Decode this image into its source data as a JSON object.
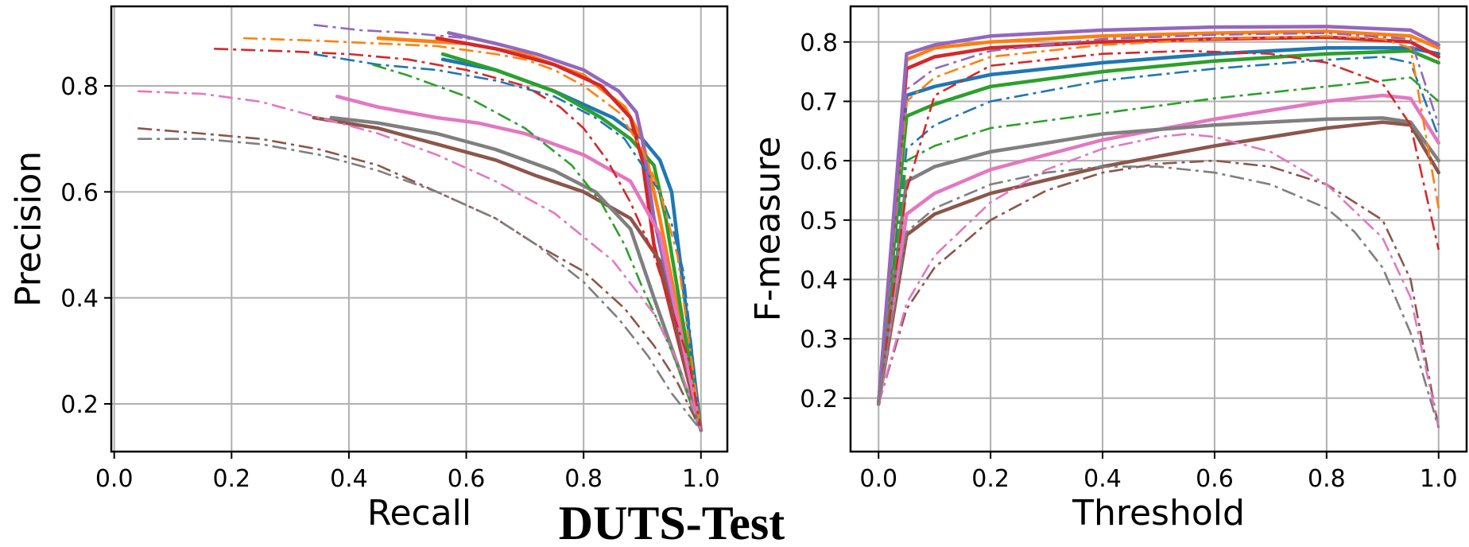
{
  "figure_title": "DUTS-Test",
  "chart_data": [
    {
      "type": "line",
      "title": "",
      "xlabel": "Recall",
      "ylabel": "Precision",
      "xlim": [
        -0.005,
        1.045
      ],
      "ylim": [
        0.11,
        0.95
      ],
      "xticks": [
        0.0,
        0.2,
        0.4,
        0.6,
        0.8,
        1.0
      ],
      "xtick_labels": [
        "0.0",
        "0.2",
        "0.4",
        "0.6",
        "0.8",
        "1.0"
      ],
      "yticks": [
        0.2,
        0.4,
        0.6,
        0.8
      ],
      "ytick_labels": [
        "0.2",
        "0.4",
        "0.6",
        "0.8"
      ],
      "grid": true,
      "series": [
        {
          "color": "#1f77b4",
          "style": "solid",
          "x": [
            0.56,
            0.65,
            0.75,
            0.85,
            0.9,
            0.93,
            0.95,
            1.0
          ],
          "y": [
            0.85,
            0.83,
            0.79,
            0.74,
            0.7,
            0.66,
            0.6,
            0.15
          ]
        },
        {
          "color": "#ff7f0e",
          "style": "solid",
          "x": [
            0.45,
            0.6,
            0.7,
            0.8,
            0.87,
            0.9,
            0.93,
            1.0
          ],
          "y": [
            0.89,
            0.88,
            0.86,
            0.82,
            0.76,
            0.7,
            0.55,
            0.15
          ]
        },
        {
          "color": "#2ca02c",
          "style": "solid",
          "x": [
            0.56,
            0.65,
            0.75,
            0.83,
            0.88,
            0.92,
            0.94,
            1.0
          ],
          "y": [
            0.86,
            0.83,
            0.79,
            0.74,
            0.7,
            0.65,
            0.55,
            0.15
          ]
        },
        {
          "color": "#d62728",
          "style": "solid",
          "x": [
            0.55,
            0.65,
            0.75,
            0.83,
            0.88,
            0.9,
            0.92,
            1.0
          ],
          "y": [
            0.89,
            0.87,
            0.84,
            0.8,
            0.74,
            0.66,
            0.5,
            0.15
          ]
        },
        {
          "color": "#9467bd",
          "style": "solid",
          "x": [
            0.57,
            0.65,
            0.72,
            0.8,
            0.86,
            0.89,
            0.9,
            0.92,
            1.0
          ],
          "y": [
            0.9,
            0.88,
            0.86,
            0.83,
            0.79,
            0.75,
            0.7,
            0.55,
            0.15
          ]
        },
        {
          "color": "#8c564b",
          "style": "solid",
          "x": [
            0.34,
            0.45,
            0.55,
            0.65,
            0.72,
            0.8,
            0.88,
            0.93,
            1.0
          ],
          "y": [
            0.74,
            0.72,
            0.69,
            0.66,
            0.63,
            0.6,
            0.55,
            0.47,
            0.15
          ]
        },
        {
          "color": "#e377c2",
          "style": "solid",
          "x": [
            0.38,
            0.45,
            0.55,
            0.62,
            0.7,
            0.8,
            0.88,
            0.93,
            1.0
          ],
          "y": [
            0.78,
            0.76,
            0.74,
            0.73,
            0.71,
            0.67,
            0.62,
            0.52,
            0.15
          ]
        },
        {
          "color": "#7f7f7f",
          "style": "solid",
          "x": [
            0.37,
            0.45,
            0.55,
            0.65,
            0.75,
            0.82,
            0.88,
            0.92,
            1.0
          ],
          "y": [
            0.74,
            0.73,
            0.71,
            0.68,
            0.64,
            0.6,
            0.53,
            0.4,
            0.15
          ]
        },
        {
          "color": "#1f77b4",
          "style": "dashdot",
          "x": [
            0.34,
            0.45,
            0.55,
            0.65,
            0.75,
            0.82,
            0.87,
            0.9,
            0.93,
            0.95,
            0.97,
            1.0
          ],
          "y": [
            0.86,
            0.84,
            0.83,
            0.81,
            0.78,
            0.74,
            0.7,
            0.65,
            0.6,
            0.54,
            0.45,
            0.15
          ]
        },
        {
          "color": "#ff7f0e",
          "style": "dashdot",
          "x": [
            0.22,
            0.35,
            0.45,
            0.55,
            0.65,
            0.7,
            0.75,
            0.8,
            0.86,
            0.9,
            0.93,
            0.96,
            1.0
          ],
          "y": [
            0.89,
            0.885,
            0.88,
            0.875,
            0.86,
            0.85,
            0.83,
            0.8,
            0.75,
            0.68,
            0.6,
            0.48,
            0.15
          ]
        },
        {
          "color": "#2ca02c",
          "style": "dashdot",
          "x": [
            0.44,
            0.5,
            0.6,
            0.7,
            0.78,
            0.83,
            0.87,
            0.9,
            0.95,
            1.0
          ],
          "y": [
            0.84,
            0.82,
            0.78,
            0.72,
            0.65,
            0.58,
            0.5,
            0.42,
            0.3,
            0.15
          ]
        },
        {
          "color": "#d62728",
          "style": "dashdot",
          "x": [
            0.17,
            0.3,
            0.4,
            0.5,
            0.6,
            0.7,
            0.76,
            0.8,
            0.84,
            0.88,
            0.92,
            0.95,
            0.98,
            1.0
          ],
          "y": [
            0.87,
            0.865,
            0.86,
            0.85,
            0.83,
            0.8,
            0.76,
            0.72,
            0.66,
            0.58,
            0.48,
            0.38,
            0.28,
            0.15
          ]
        },
        {
          "color": "#9467bd",
          "style": "dashdot",
          "x": [
            0.34,
            0.42,
            0.5,
            0.6,
            0.65
          ],
          "y": [
            0.915,
            0.905,
            0.9,
            0.89,
            0.88
          ]
        },
        {
          "color": "#8c564b",
          "style": "dashdot",
          "x": [
            0.04,
            0.15,
            0.25,
            0.35,
            0.45,
            0.55,
            0.65,
            0.72,
            0.8,
            0.87,
            0.92,
            0.96,
            1.0
          ],
          "y": [
            0.72,
            0.71,
            0.7,
            0.68,
            0.65,
            0.6,
            0.55,
            0.5,
            0.45,
            0.38,
            0.31,
            0.24,
            0.15
          ]
        },
        {
          "color": "#e377c2",
          "style": "dashdot",
          "x": [
            0.04,
            0.15,
            0.25,
            0.35,
            0.45,
            0.55,
            0.65,
            0.75,
            0.85,
            0.92,
            0.96,
            1.0
          ],
          "y": [
            0.79,
            0.785,
            0.77,
            0.74,
            0.71,
            0.67,
            0.62,
            0.56,
            0.47,
            0.37,
            0.28,
            0.15
          ]
        },
        {
          "color": "#7f7f7f",
          "style": "dashdot",
          "x": [
            0.04,
            0.15,
            0.25,
            0.35,
            0.45,
            0.55,
            0.65,
            0.72,
            0.8,
            0.86,
            0.91,
            0.95,
            1.0
          ],
          "y": [
            0.7,
            0.7,
            0.69,
            0.67,
            0.64,
            0.6,
            0.55,
            0.5,
            0.43,
            0.36,
            0.29,
            0.22,
            0.15
          ]
        }
      ]
    },
    {
      "type": "line",
      "title": "",
      "xlabel": "Threshold",
      "ylabel": "F-measure",
      "xlim": [
        -0.05,
        1.05
      ],
      "ylim": [
        0.11,
        0.86
      ],
      "xticks": [
        0.0,
        0.2,
        0.4,
        0.6,
        0.8,
        1.0
      ],
      "xtick_labels": [
        "0.0",
        "0.2",
        "0.4",
        "0.6",
        "0.8",
        "1.0"
      ],
      "yticks": [
        0.2,
        0.3,
        0.4,
        0.5,
        0.6,
        0.7,
        0.8
      ],
      "ytick_labels": [
        "0.2",
        "0.3",
        "0.4",
        "0.5",
        "0.6",
        "0.7",
        "0.8"
      ],
      "grid": true,
      "series": [
        {
          "color": "#1f77b4",
          "style": "solid",
          "x": [
            0.0,
            0.05,
            0.1,
            0.2,
            0.4,
            0.6,
            0.8,
            0.95,
            1.0
          ],
          "y": [
            0.19,
            0.71,
            0.725,
            0.745,
            0.765,
            0.78,
            0.79,
            0.79,
            0.78
          ]
        },
        {
          "color": "#ff7f0e",
          "style": "solid",
          "x": [
            0.0,
            0.05,
            0.1,
            0.2,
            0.4,
            0.6,
            0.8,
            0.95,
            1.0
          ],
          "y": [
            0.19,
            0.77,
            0.79,
            0.8,
            0.81,
            0.815,
            0.818,
            0.81,
            0.79
          ]
        },
        {
          "color": "#2ca02c",
          "style": "solid",
          "x": [
            0.0,
            0.05,
            0.1,
            0.2,
            0.4,
            0.6,
            0.8,
            0.95,
            1.0
          ],
          "y": [
            0.19,
            0.675,
            0.695,
            0.725,
            0.75,
            0.768,
            0.78,
            0.785,
            0.765
          ]
        },
        {
          "color": "#d62728",
          "style": "solid",
          "x": [
            0.0,
            0.05,
            0.1,
            0.2,
            0.4,
            0.6,
            0.8,
            0.95,
            1.0
          ],
          "y": [
            0.19,
            0.755,
            0.775,
            0.79,
            0.8,
            0.805,
            0.808,
            0.8,
            0.775
          ]
        },
        {
          "color": "#9467bd",
          "style": "solid",
          "x": [
            0.0,
            0.05,
            0.1,
            0.2,
            0.4,
            0.6,
            0.8,
            0.95,
            1.0
          ],
          "y": [
            0.19,
            0.78,
            0.795,
            0.81,
            0.82,
            0.825,
            0.826,
            0.82,
            0.795
          ]
        },
        {
          "color": "#8c564b",
          "style": "solid",
          "x": [
            0.0,
            0.05,
            0.1,
            0.2,
            0.4,
            0.6,
            0.8,
            0.9,
            0.95,
            1.0
          ],
          "y": [
            0.19,
            0.475,
            0.51,
            0.545,
            0.59,
            0.625,
            0.655,
            0.665,
            0.66,
            0.58
          ]
        },
        {
          "color": "#e377c2",
          "style": "solid",
          "x": [
            0.0,
            0.05,
            0.1,
            0.2,
            0.4,
            0.6,
            0.8,
            0.9,
            0.95,
            1.0
          ],
          "y": [
            0.19,
            0.51,
            0.545,
            0.585,
            0.635,
            0.67,
            0.7,
            0.71,
            0.705,
            0.63
          ]
        },
        {
          "color": "#7f7f7f",
          "style": "solid",
          "x": [
            0.0,
            0.05,
            0.1,
            0.2,
            0.4,
            0.6,
            0.8,
            0.9,
            0.95,
            1.0
          ],
          "y": [
            0.19,
            0.565,
            0.59,
            0.615,
            0.645,
            0.66,
            0.67,
            0.672,
            0.665,
            0.6
          ]
        },
        {
          "color": "#1f77b4",
          "style": "dashdot",
          "x": [
            0.0,
            0.05,
            0.1,
            0.2,
            0.4,
            0.6,
            0.8,
            0.9,
            0.95,
            1.0
          ],
          "y": [
            0.19,
            0.62,
            0.66,
            0.7,
            0.735,
            0.755,
            0.77,
            0.775,
            0.765,
            0.64
          ]
        },
        {
          "color": "#ff7f0e",
          "style": "dashdot",
          "x": [
            0.0,
            0.05,
            0.1,
            0.2,
            0.4,
            0.6,
            0.8,
            0.9,
            0.95,
            1.0
          ],
          "y": [
            0.19,
            0.7,
            0.74,
            0.775,
            0.795,
            0.805,
            0.81,
            0.805,
            0.79,
            0.52
          ]
        },
        {
          "color": "#2ca02c",
          "style": "dashdot",
          "x": [
            0.0,
            0.05,
            0.1,
            0.2,
            0.4,
            0.6,
            0.8,
            0.95,
            1.0
          ],
          "y": [
            0.19,
            0.6,
            0.625,
            0.655,
            0.68,
            0.705,
            0.725,
            0.74,
            0.7
          ]
        },
        {
          "color": "#d62728",
          "style": "dashdot",
          "x": [
            0.0,
            0.05,
            0.1,
            0.2,
            0.4,
            0.55,
            0.7,
            0.8,
            0.9,
            0.95,
            1.0
          ],
          "y": [
            0.19,
            0.55,
            0.71,
            0.76,
            0.78,
            0.785,
            0.78,
            0.765,
            0.73,
            0.66,
            0.45
          ]
        },
        {
          "color": "#9467bd",
          "style": "dashdot",
          "x": [
            0.0,
            0.05,
            0.1,
            0.2,
            0.4,
            0.6,
            0.8,
            0.95,
            1.0
          ],
          "y": [
            0.19,
            0.72,
            0.755,
            0.785,
            0.805,
            0.812,
            0.815,
            0.805,
            0.66
          ]
        },
        {
          "color": "#8c564b",
          "style": "dashdot",
          "x": [
            0.0,
            0.05,
            0.1,
            0.2,
            0.3,
            0.4,
            0.5,
            0.6,
            0.7,
            0.8,
            0.9,
            0.95,
            1.0
          ],
          "y": [
            0.19,
            0.35,
            0.42,
            0.5,
            0.55,
            0.58,
            0.595,
            0.6,
            0.59,
            0.56,
            0.5,
            0.4,
            0.15
          ]
        },
        {
          "color": "#e377c2",
          "style": "dashdot",
          "x": [
            0.0,
            0.05,
            0.1,
            0.2,
            0.3,
            0.4,
            0.5,
            0.55,
            0.6,
            0.7,
            0.8,
            0.9,
            0.95,
            1.0
          ],
          "y": [
            0.19,
            0.36,
            0.44,
            0.53,
            0.585,
            0.62,
            0.64,
            0.645,
            0.64,
            0.615,
            0.56,
            0.47,
            0.37,
            0.15
          ]
        },
        {
          "color": "#7f7f7f",
          "style": "dashdot",
          "x": [
            0.0,
            0.05,
            0.1,
            0.2,
            0.3,
            0.4,
            0.5,
            0.6,
            0.7,
            0.8,
            0.85,
            0.9,
            0.95,
            1.0
          ],
          "y": [
            0.19,
            0.48,
            0.52,
            0.56,
            0.58,
            0.59,
            0.59,
            0.58,
            0.56,
            0.52,
            0.48,
            0.42,
            0.31,
            0.15
          ]
        }
      ]
    }
  ]
}
